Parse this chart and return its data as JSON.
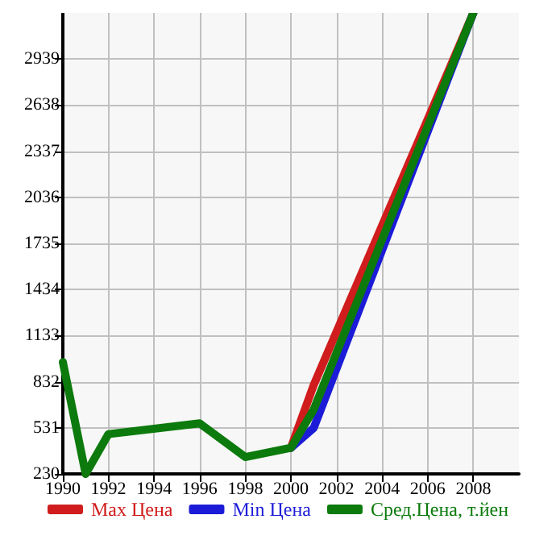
{
  "chart_data": {
    "type": "line",
    "x": [
      1990,
      1991,
      1992,
      1996,
      1998,
      2000,
      2001,
      2008
    ],
    "series": [
      {
        "name": "Max Цена",
        "color": "#d01c1c",
        "values": [
          null,
          null,
          null,
          null,
          null,
          400,
          810,
          3240
        ]
      },
      {
        "name": "Min Цена",
        "color": "#1c1cd8",
        "values": [
          null,
          null,
          null,
          null,
          null,
          400,
          530,
          3240
        ]
      },
      {
        "name": "Сред.Цена, т.йен",
        "color": "#0c7a0c",
        "values": [
          960,
          230,
          490,
          560,
          340,
          400,
          650,
          3240
        ]
      }
    ],
    "xlim": [
      1990,
      2010
    ],
    "xticks": [
      1990,
      1992,
      1994,
      1996,
      1998,
      2000,
      2002,
      2004,
      2006,
      2008
    ],
    "ylim": [
      230,
      3240
    ],
    "yticks": [
      230,
      531,
      832,
      1133,
      1434,
      1735,
      2036,
      2337,
      2638,
      2939
    ],
    "grid": true,
    "legend": "bottom",
    "marker": "none",
    "line_style": "solid"
  }
}
